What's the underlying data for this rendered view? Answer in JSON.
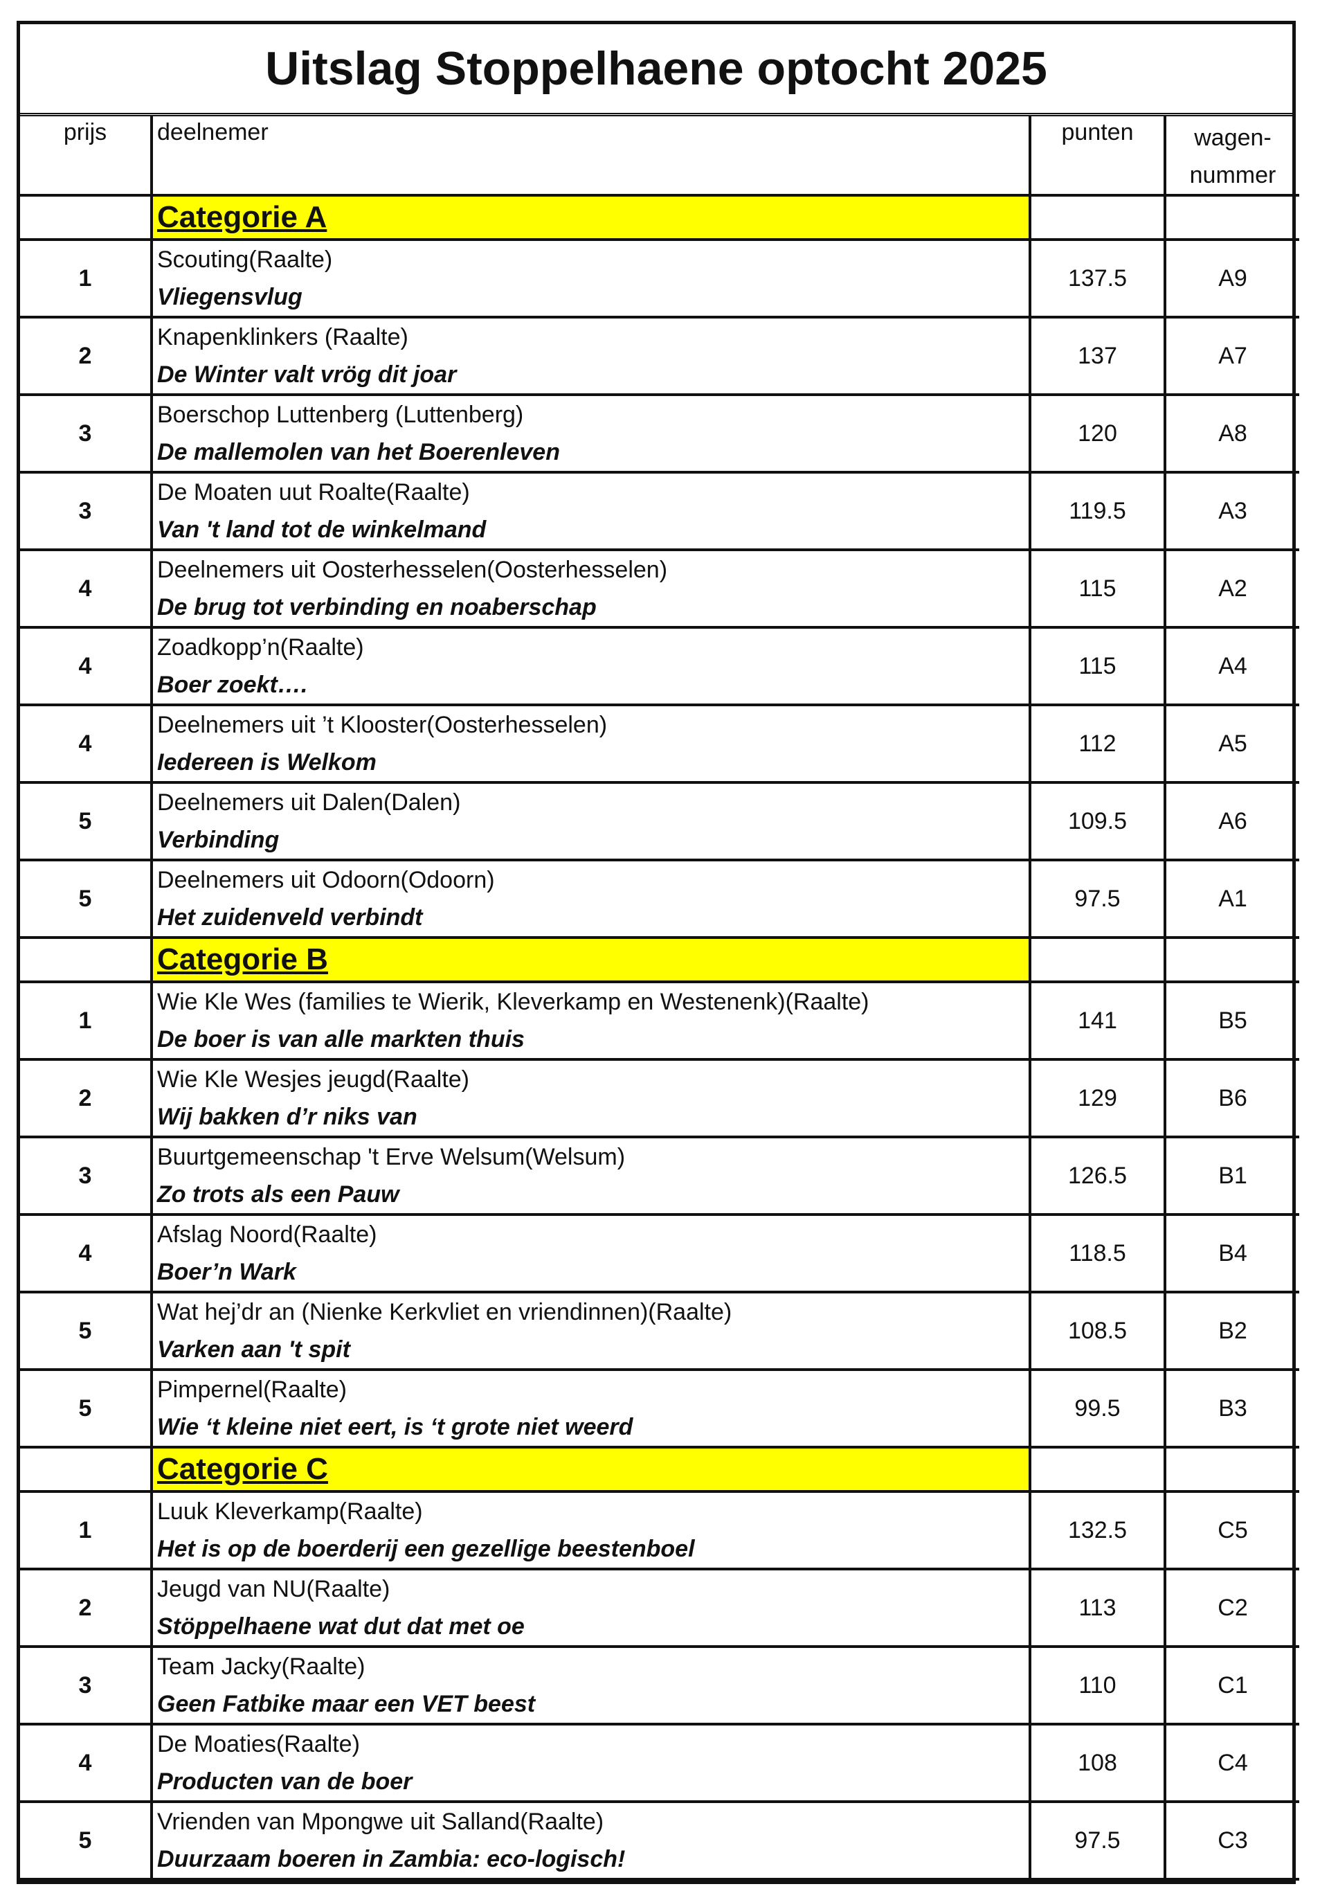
{
  "title": "Uitslag Stoppelhaene optocht 2025",
  "header": {
    "prijs": "prijs",
    "deelnemer": "deelnemer",
    "punten": "punten",
    "wagennummer": [
      "wagen-",
      "nummer"
    ]
  },
  "categories": [
    {
      "name": "Categorie A",
      "rows": [
        {
          "prijs": 1,
          "deelnemer": "Scouting(Raalte)",
          "titel": "Vliegensvlug",
          "punten": 137.5,
          "wagen": "A9"
        },
        {
          "prijs": 2,
          "deelnemer": "Knapenklinkers (Raalte)",
          "titel": "De Winter valt vrög dit joar",
          "punten": 137,
          "wagen": "A7"
        },
        {
          "prijs": 3,
          "deelnemer": "Boerschop Luttenberg (Luttenberg)",
          "titel": "De mallemolen van het Boerenleven",
          "punten": 120,
          "wagen": "A8"
        },
        {
          "prijs": 3,
          "deelnemer": "De Moaten uut Roalte(Raalte)",
          "titel": "Van 't land tot de winkelmand",
          "punten": 119.5,
          "wagen": "A3"
        },
        {
          "prijs": 4,
          "deelnemer": "Deelnemers uit Oosterhesselen(Oosterhesselen)",
          "titel": "De brug tot verbinding en noaberschap",
          "punten": 115,
          "wagen": "A2"
        },
        {
          "prijs": 4,
          "deelnemer": "Zoadkopp’n(Raalte)",
          "titel": "Boer zoekt….",
          "punten": 115,
          "wagen": "A4"
        },
        {
          "prijs": 4,
          "deelnemer": "Deelnemers uit ’t Klooster(Oosterhesselen)",
          "titel": "Iedereen is Welkom",
          "punten": 112,
          "wagen": "A5"
        },
        {
          "prijs": 5,
          "deelnemer": "Deelnemers uit Dalen(Dalen)",
          "titel": "Verbinding",
          "punten": 109.5,
          "wagen": "A6"
        },
        {
          "prijs": 5,
          "deelnemer": "Deelnemers uit Odoorn(Odoorn)",
          "titel": "Het zuidenveld verbindt",
          "punten": 97.5,
          "wagen": "A1"
        }
      ]
    },
    {
      "name": "Categorie B",
      "rows": [
        {
          "prijs": 1,
          "deelnemer": "Wie Kle Wes (families te Wierik, Kleverkamp en Westenenk)(Raalte)",
          "titel": "De boer is van alle markten thuis",
          "punten": 141,
          "wagen": "B5"
        },
        {
          "prijs": 2,
          "deelnemer": "Wie Kle Wesjes jeugd(Raalte)",
          "titel": "Wij bakken d’r niks van",
          "punten": 129,
          "wagen": "B6"
        },
        {
          "prijs": 3,
          "deelnemer": "Buurtgemeenschap 't Erve Welsum(Welsum)",
          "titel": "Zo trots als een Pauw",
          "punten": 126.5,
          "wagen": "B1"
        },
        {
          "prijs": 4,
          "deelnemer": "Afslag Noord(Raalte)",
          "titel": "Boer’n Wark",
          "punten": 118.5,
          "wagen": "B4"
        },
        {
          "prijs": 5,
          "deelnemer": "Wat hej’dr an (Nienke Kerkvliet en vriendinnen)(Raalte)",
          "titel": "Varken aan 't spit",
          "punten": 108.5,
          "wagen": "B2"
        },
        {
          "prijs": 5,
          "deelnemer": "Pimpernel(Raalte)",
          "titel": "Wie ‘t kleine niet eert, is ‘t grote niet weerd",
          "punten": 99.5,
          "wagen": "B3"
        }
      ]
    },
    {
      "name": "Categorie C",
      "rows": [
        {
          "prijs": 1,
          "deelnemer": "Luuk Kleverkamp(Raalte)",
          "titel": "Het is op de boerderij een gezellige beestenboel",
          "punten": 132.5,
          "wagen": "C5"
        },
        {
          "prijs": 2,
          "deelnemer": "Jeugd van NU(Raalte)",
          "titel": "Stöppelhaene wat dut dat met oe",
          "punten": 113,
          "wagen": "C2"
        },
        {
          "prijs": 3,
          "deelnemer": "Team Jacky(Raalte)",
          "titel": "Geen Fatbike maar een VET beest",
          "punten": 110,
          "wagen": "C1"
        },
        {
          "prijs": 4,
          "deelnemer": "De Moaties(Raalte)",
          "titel": "Producten van de boer",
          "punten": 108,
          "wagen": "C4"
        },
        {
          "prijs": 5,
          "deelnemer": "Vrienden van Mpongwe uit Salland(Raalte)",
          "titel": "Duurzaam boeren in Zambia: eco-logisch!",
          "punten": 97.5,
          "wagen": "C3"
        }
      ]
    }
  ]
}
